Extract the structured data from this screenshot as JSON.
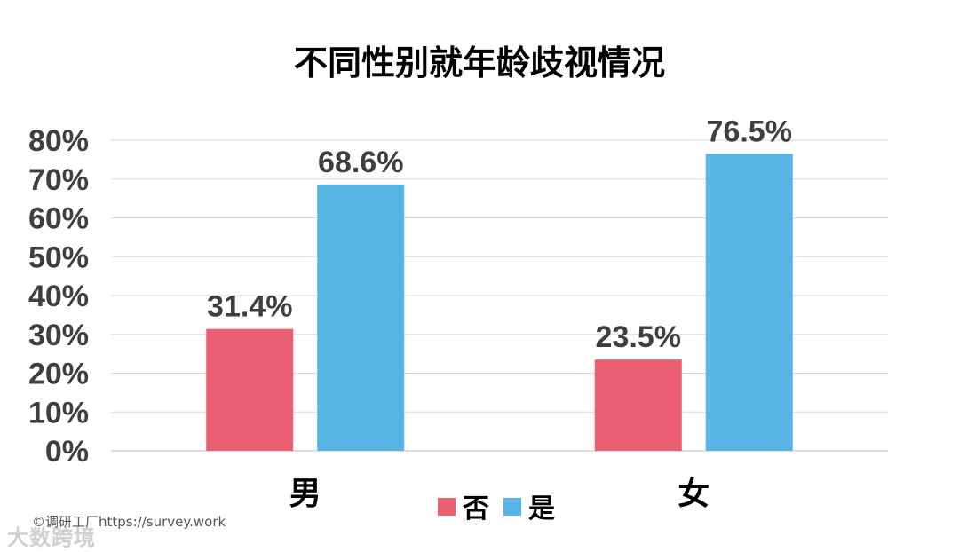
{
  "chart_data": {
    "type": "bar",
    "title": "不同性别就年龄歧视情况",
    "categories": [
      "男",
      "女"
    ],
    "series": [
      {
        "name": "否",
        "values": [
          31.4,
          23.5
        ],
        "color": "#eb5f73"
      },
      {
        "name": "是",
        "values": [
          68.6,
          76.5
        ],
        "color": "#57b4e3"
      }
    ],
    "data_labels": [
      [
        "31.4%",
        "23.5%"
      ],
      [
        "68.6%",
        "76.5%"
      ]
    ],
    "y_ticks": [
      "0%",
      "10%",
      "20%",
      "30%",
      "40%",
      "50%",
      "60%",
      "70%",
      "80%"
    ],
    "ylim": [
      0,
      80
    ],
    "grid": true,
    "legend_position": "bottom"
  },
  "watermark": {
    "source": "©调研工厂https://survey.work",
    "logo_text": "大数跨境"
  }
}
